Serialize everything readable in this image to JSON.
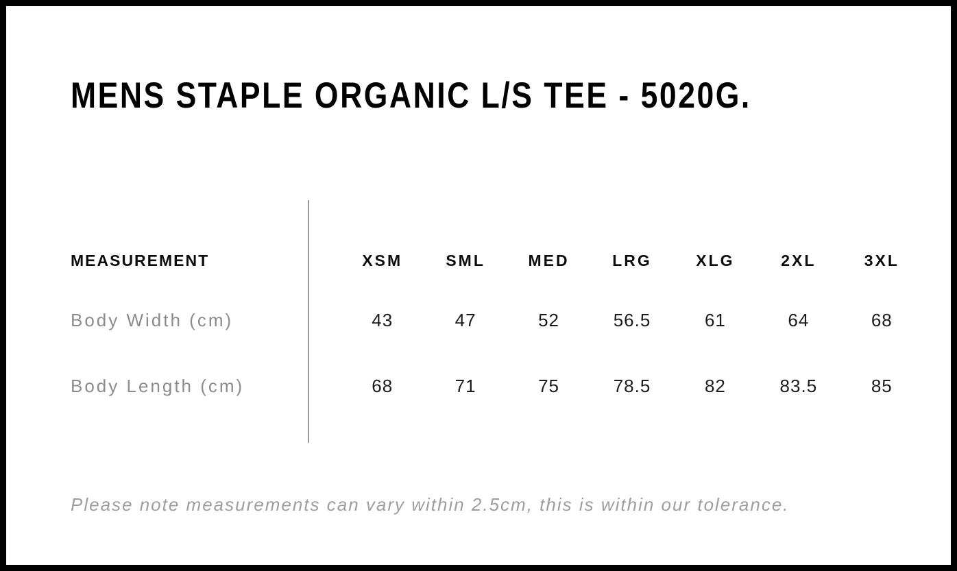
{
  "header": {
    "title": "MENS STAPLE ORGANIC L/S TEE - 5020G."
  },
  "table": {
    "measurement_label": "MEASUREMENT",
    "sizes": [
      "XSM",
      "SML",
      "MED",
      "LRG",
      "XLG",
      "2XL",
      "3XL"
    ],
    "rows": [
      {
        "label": "Body Width (cm)",
        "values": [
          "43",
          "47",
          "52",
          "56.5",
          "61",
          "64",
          "68"
        ]
      },
      {
        "label": "Body Length (cm)",
        "values": [
          "68",
          "71",
          "75",
          "78.5",
          "82",
          "83.5",
          "85"
        ]
      }
    ]
  },
  "footer": {
    "note": "Please note measurements can vary within 2.5cm, this is within our tolerance."
  },
  "colors": {
    "border": "#000000",
    "heading_text": "#000000",
    "value_text": "#1c1c1c",
    "label_gray": "#8c8c8c",
    "note_gray": "#9e9e9e",
    "divider_gray": "#999999",
    "background": "#ffffff"
  },
  "chart_data": {
    "type": "table",
    "title": "MENS STAPLE ORGANIC L/S TEE - 5020G.",
    "columns": [
      "MEASUREMENT",
      "XSM",
      "SML",
      "MED",
      "LRG",
      "XLG",
      "2XL",
      "3XL"
    ],
    "rows": [
      {
        "measurement": "Body Width (cm)",
        "XSM": 43,
        "SML": 47,
        "MED": 52,
        "LRG": 56.5,
        "XLG": 61,
        "2XL": 64,
        "3XL": 68
      },
      {
        "measurement": "Body Length (cm)",
        "XSM": 68,
        "SML": 71,
        "MED": 75,
        "LRG": 78.5,
        "XLG": 82,
        "2XL": 83.5,
        "3XL": 85
      }
    ],
    "note": "Please note measurements can vary within 2.5cm, this is within our tolerance.",
    "layout_hints": {
      "grid": "off",
      "label_column_divider": "vertical gray line between measurement labels and size columns",
      "tolerance_cm": 2.5
    }
  }
}
